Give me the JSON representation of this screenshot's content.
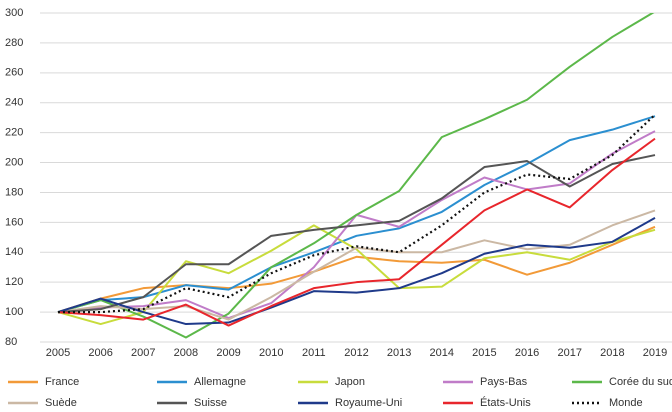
{
  "chart_data": {
    "type": "line",
    "categories": [
      "2005",
      "2006",
      "2007",
      "2008",
      "2009",
      "2010",
      "2011",
      "2012",
      "2013",
      "2014",
      "2015",
      "2016",
      "2017",
      "2018",
      "2019"
    ],
    "ylim": [
      80,
      300
    ],
    "yticks": [
      80,
      100,
      120,
      140,
      160,
      180,
      200,
      220,
      240,
      260,
      280,
      300
    ],
    "grid": true,
    "series": [
      {
        "name": "France",
        "color": "#f29a38",
        "values": [
          100,
          109,
          116,
          118,
          116,
          119,
          127,
          137,
          134,
          133,
          135,
          125,
          133,
          145,
          157
        ]
      },
      {
        "name": "Allemagne",
        "color": "#2b8fd0",
        "values": [
          100,
          108,
          110,
          118,
          115,
          130,
          140,
          151,
          156,
          167,
          185,
          199,
          215,
          222,
          231
        ]
      },
      {
        "name": "Japon",
        "color": "#c8dc3c",
        "values": [
          100,
          92,
          100,
          134,
          126,
          141,
          158,
          142,
          116,
          117,
          136,
          140,
          135,
          147,
          155
        ]
      },
      {
        "name": "Pays-Bas",
        "color": "#c07cc8",
        "values": [
          100,
          103,
          104,
          108,
          96,
          106,
          130,
          165,
          157,
          175,
          190,
          182,
          186,
          206,
          221
        ]
      },
      {
        "name": "Corée du sud",
        "color": "#5cb84a",
        "values": [
          100,
          108,
          97,
          83,
          99,
          130,
          146,
          165,
          181,
          217,
          229,
          242,
          264,
          284,
          301
        ]
      },
      {
        "name": "Suède",
        "color": "#cbb8a4",
        "values": [
          100,
          104,
          102,
          104,
          95,
          110,
          127,
          143,
          140,
          140,
          148,
          142,
          145,
          158,
          168
        ]
      },
      {
        "name": "Suisse",
        "color": "#555555",
        "values": [
          100,
          102,
          110,
          132,
          132,
          151,
          155,
          158,
          161,
          176,
          197,
          201,
          184,
          199,
          205
        ]
      },
      {
        "name": "Royaume-Uni",
        "color": "#1f3a8a",
        "values": [
          100,
          109,
          100,
          92,
          93,
          103,
          114,
          113,
          116,
          126,
          139,
          145,
          143,
          147,
          163
        ]
      },
      {
        "name": "États-Unis",
        "color": "#e8262c",
        "values": [
          100,
          98,
          95,
          105,
          91,
          104,
          116,
          120,
          122,
          145,
          168,
          182,
          170,
          195,
          216
        ]
      },
      {
        "name": "Monde",
        "color": "#111111",
        "dashed": true,
        "values": [
          100,
          100,
          102,
          116,
          110,
          126,
          138,
          144,
          140,
          158,
          180,
          192,
          189,
          205,
          232
        ]
      }
    ]
  }
}
